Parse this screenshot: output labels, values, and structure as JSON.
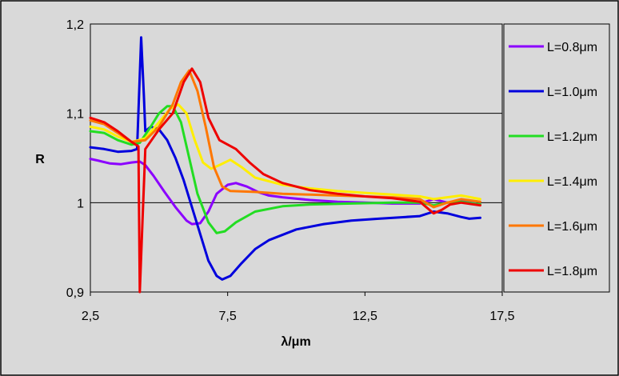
{
  "chart_data": {
    "type": "line",
    "title": "",
    "xlabel": "λ/μm",
    "ylabel": "R",
    "xlim": [
      2.5,
      17.5
    ],
    "ylim": [
      0.9,
      1.2
    ],
    "x_ticks": [
      2.5,
      7.5,
      12.5,
      17.5
    ],
    "x_tick_labels": [
      "2,5",
      "7,5",
      "12,5",
      "17,5"
    ],
    "y_ticks": [
      0.9,
      1.0,
      1.1,
      1.2
    ],
    "y_tick_labels": [
      "0,9",
      "1",
      "1,1",
      "1,2"
    ],
    "grid": "horizontal",
    "legend_position": "right",
    "series": [
      {
        "name": "L=0.8μm",
        "color": "#8b00ff",
        "points": [
          [
            2.5,
            1.049
          ],
          [
            2.8,
            1.047
          ],
          [
            3.2,
            1.044
          ],
          [
            3.6,
            1.043
          ],
          [
            4.0,
            1.045
          ],
          [
            4.3,
            1.046
          ],
          [
            4.5,
            1.042
          ],
          [
            4.8,
            1.03
          ],
          [
            5.2,
            1.012
          ],
          [
            5.6,
            0.995
          ],
          [
            6.0,
            0.98
          ],
          [
            6.2,
            0.976
          ],
          [
            6.5,
            0.977
          ],
          [
            6.8,
            0.99
          ],
          [
            7.1,
            1.01
          ],
          [
            7.5,
            1.02
          ],
          [
            7.8,
            1.022
          ],
          [
            8.2,
            1.018
          ],
          [
            8.6,
            1.012
          ],
          [
            9.0,
            1.008
          ],
          [
            9.5,
            1.006
          ],
          [
            10.5,
            1.003
          ],
          [
            11.5,
            1.001
          ],
          [
            12.5,
            1.0
          ],
          [
            13.5,
            0.999
          ],
          [
            14.5,
            0.999
          ],
          [
            15.0,
            1.004
          ],
          [
            15.5,
            1.0
          ],
          [
            16.0,
            1.002
          ],
          [
            16.5,
            0.999
          ],
          [
            16.7,
            0.998
          ]
        ]
      },
      {
        "name": "L=1.0μm",
        "color": "#0000dd",
        "points": [
          [
            2.5,
            1.062
          ],
          [
            3.0,
            1.06
          ],
          [
            3.5,
            1.057
          ],
          [
            4.0,
            1.058
          ],
          [
            4.2,
            1.06
          ],
          [
            4.35,
            1.185
          ],
          [
            4.45,
            1.12
          ],
          [
            4.5,
            1.08
          ],
          [
            4.7,
            1.085
          ],
          [
            5.0,
            1.082
          ],
          [
            5.3,
            1.07
          ],
          [
            5.6,
            1.05
          ],
          [
            5.9,
            1.025
          ],
          [
            6.2,
            0.995
          ],
          [
            6.5,
            0.965
          ],
          [
            6.8,
            0.935
          ],
          [
            7.1,
            0.918
          ],
          [
            7.3,
            0.914
          ],
          [
            7.6,
            0.918
          ],
          [
            8.0,
            0.932
          ],
          [
            8.5,
            0.948
          ],
          [
            9.0,
            0.958
          ],
          [
            10.0,
            0.97
          ],
          [
            11.0,
            0.976
          ],
          [
            12.0,
            0.98
          ],
          [
            13.0,
            0.982
          ],
          [
            14.0,
            0.984
          ],
          [
            14.5,
            0.985
          ],
          [
            15.0,
            0.99
          ],
          [
            15.5,
            0.988
          ],
          [
            16.0,
            0.984
          ],
          [
            16.3,
            0.982
          ],
          [
            16.7,
            0.983
          ]
        ]
      },
      {
        "name": "L=1.2μm",
        "color": "#22dd22",
        "points": [
          [
            2.5,
            1.08
          ],
          [
            3.0,
            1.078
          ],
          [
            3.5,
            1.07
          ],
          [
            4.0,
            1.065
          ],
          [
            4.3,
            1.067
          ],
          [
            4.7,
            1.085
          ],
          [
            5.0,
            1.1
          ],
          [
            5.3,
            1.108
          ],
          [
            5.5,
            1.108
          ],
          [
            5.8,
            1.09
          ],
          [
            6.1,
            1.05
          ],
          [
            6.4,
            1.01
          ],
          [
            6.8,
            0.978
          ],
          [
            7.1,
            0.966
          ],
          [
            7.4,
            0.968
          ],
          [
            7.8,
            0.978
          ],
          [
            8.5,
            0.99
          ],
          [
            9.5,
            0.996
          ],
          [
            10.5,
            0.998
          ],
          [
            12.0,
            0.999
          ],
          [
            13.5,
            1.0
          ],
          [
            14.5,
            1.0
          ],
          [
            15.0,
            0.997
          ],
          [
            15.5,
            1.0
          ],
          [
            16.0,
            1.001
          ],
          [
            16.7,
            0.998
          ]
        ]
      },
      {
        "name": "L=1.4μm",
        "color": "#ffee00",
        "points": [
          [
            2.5,
            1.085
          ],
          [
            3.0,
            1.082
          ],
          [
            3.5,
            1.074
          ],
          [
            4.0,
            1.068
          ],
          [
            4.5,
            1.072
          ],
          [
            5.0,
            1.09
          ],
          [
            5.4,
            1.105
          ],
          [
            5.7,
            1.11
          ],
          [
            6.0,
            1.1
          ],
          [
            6.3,
            1.07
          ],
          [
            6.6,
            1.045
          ],
          [
            6.9,
            1.038
          ],
          [
            7.2,
            1.042
          ],
          [
            7.6,
            1.048
          ],
          [
            8.0,
            1.04
          ],
          [
            8.5,
            1.028
          ],
          [
            9.5,
            1.02
          ],
          [
            10.5,
            1.016
          ],
          [
            11.5,
            1.013
          ],
          [
            12.5,
            1.011
          ],
          [
            13.5,
            1.009
          ],
          [
            14.5,
            1.007
          ],
          [
            15.0,
            1.004
          ],
          [
            15.5,
            1.006
          ],
          [
            16.0,
            1.008
          ],
          [
            16.7,
            1.004
          ]
        ]
      },
      {
        "name": "L=1.6μm",
        "color": "#ff7700",
        "points": [
          [
            2.5,
            1.092
          ],
          [
            3.0,
            1.088
          ],
          [
            3.5,
            1.078
          ],
          [
            4.0,
            1.068
          ],
          [
            4.5,
            1.07
          ],
          [
            5.0,
            1.085
          ],
          [
            5.5,
            1.11
          ],
          [
            5.8,
            1.135
          ],
          [
            6.1,
            1.148
          ],
          [
            6.4,
            1.125
          ],
          [
            6.7,
            1.085
          ],
          [
            7.0,
            1.04
          ],
          [
            7.3,
            1.018
          ],
          [
            7.6,
            1.013
          ],
          [
            8.5,
            1.012
          ],
          [
            9.5,
            1.01
          ],
          [
            10.5,
            1.009
          ],
          [
            11.5,
            1.008
          ],
          [
            12.5,
            1.007
          ],
          [
            13.5,
            1.006
          ],
          [
            14.5,
            1.004
          ],
          [
            15.0,
            0.995
          ],
          [
            15.5,
            1.0
          ],
          [
            16.0,
            1.004
          ],
          [
            16.7,
            1.001
          ]
        ]
      },
      {
        "name": "L=1.8μm",
        "color": "#ee0000",
        "points": [
          [
            2.5,
            1.095
          ],
          [
            3.0,
            1.09
          ],
          [
            3.5,
            1.08
          ],
          [
            4.0,
            1.068
          ],
          [
            4.25,
            1.063
          ],
          [
            4.3,
            0.9
          ],
          [
            4.4,
            0.98
          ],
          [
            4.5,
            1.06
          ],
          [
            5.0,
            1.082
          ],
          [
            5.5,
            1.1
          ],
          [
            5.9,
            1.135
          ],
          [
            6.2,
            1.15
          ],
          [
            6.5,
            1.135
          ],
          [
            6.8,
            1.095
          ],
          [
            7.2,
            1.07
          ],
          [
            7.8,
            1.06
          ],
          [
            8.3,
            1.045
          ],
          [
            8.8,
            1.032
          ],
          [
            9.5,
            1.022
          ],
          [
            10.5,
            1.014
          ],
          [
            11.5,
            1.01
          ],
          [
            12.5,
            1.007
          ],
          [
            13.5,
            1.005
          ],
          [
            14.5,
            1.001
          ],
          [
            15.0,
            0.988
          ],
          [
            15.3,
            0.992
          ],
          [
            15.6,
            0.998
          ],
          [
            16.0,
            1.0
          ],
          [
            16.7,
            0.997
          ]
        ]
      }
    ]
  }
}
